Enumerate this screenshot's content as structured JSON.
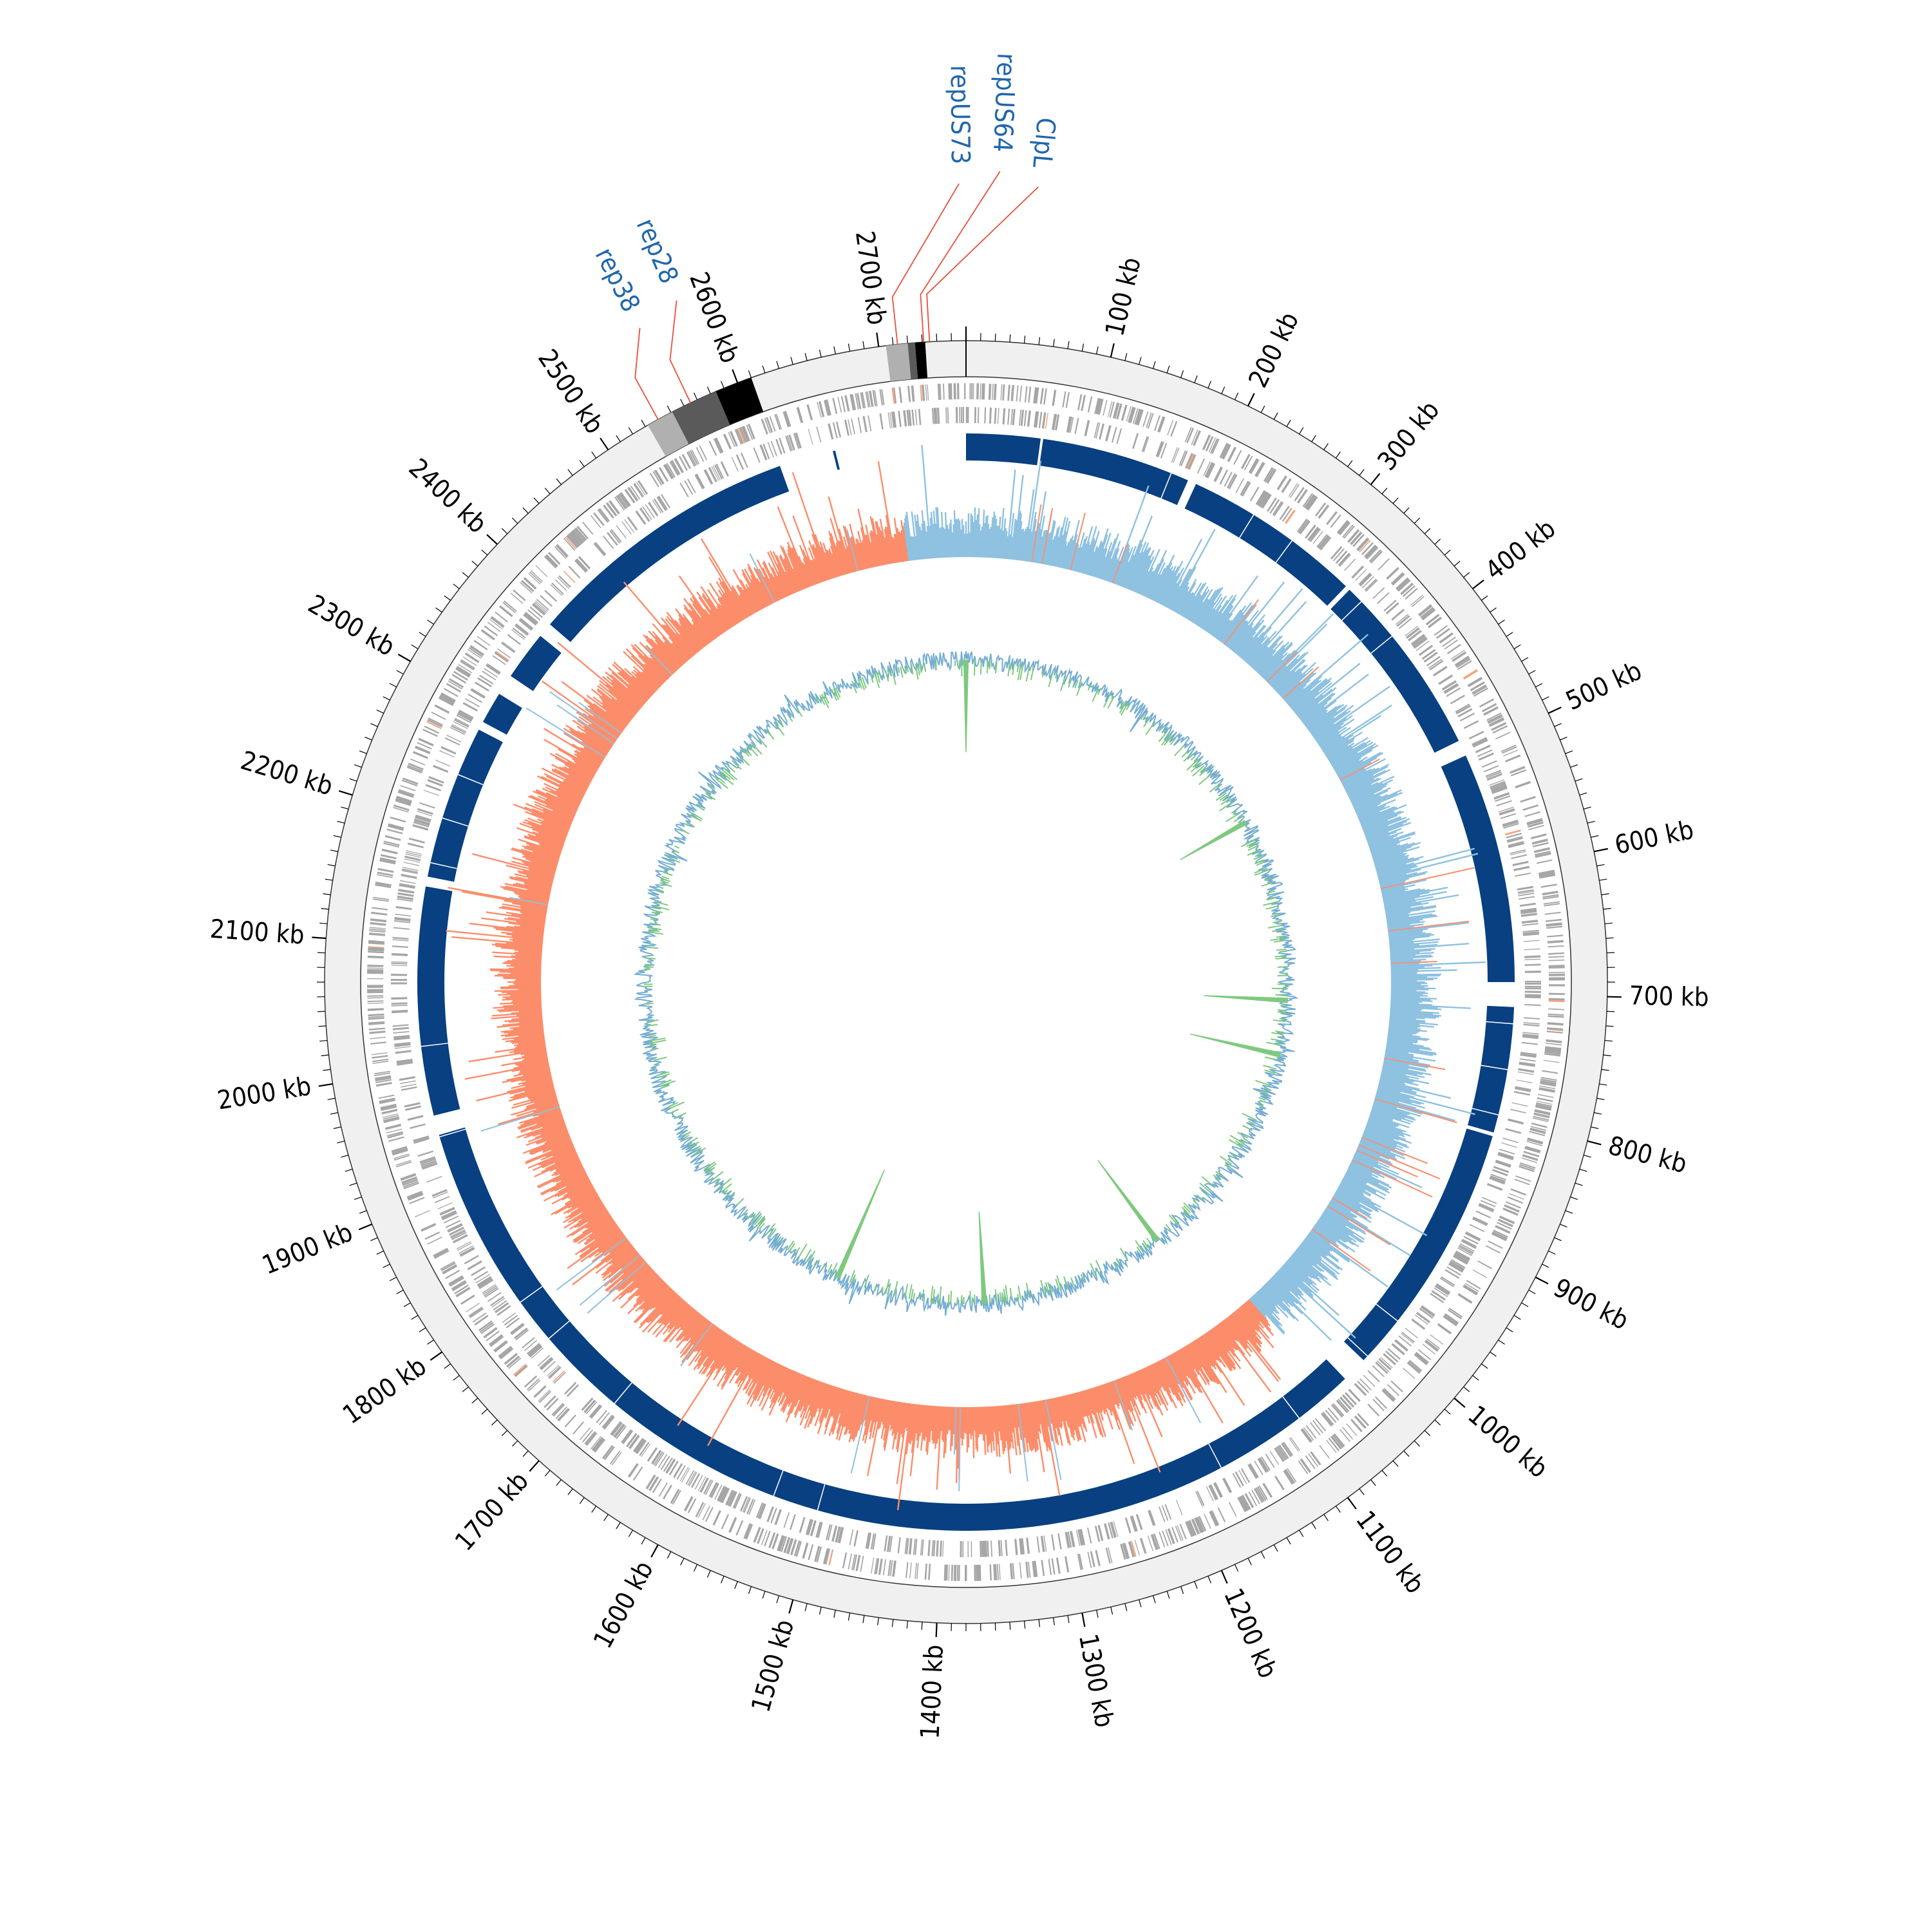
{
  "genome": {
    "length_kb": 2760,
    "ring_colors": {
      "ideogram": "#f0f0f0",
      "cds": "#a6a6a6",
      "cds_highlight": "#f4a582",
      "blocks": "#084081",
      "skew_positive": "#8fc1e0",
      "skew_negative": "#fc8d6b",
      "gc_content": "#74add1",
      "gc_peaks": "#7fc97f",
      "label_leader": "#e8503a",
      "gene_label": "#2166ac"
    }
  },
  "tick_labels": [
    {
      "pos": 100,
      "label": "100 kb"
    },
    {
      "pos": 200,
      "label": "200 kb"
    },
    {
      "pos": 300,
      "label": "300 kb"
    },
    {
      "pos": 400,
      "label": "400 kb"
    },
    {
      "pos": 500,
      "label": "500 kb"
    },
    {
      "pos": 600,
      "label": "600 kb"
    },
    {
      "pos": 700,
      "label": "700 kb"
    },
    {
      "pos": 800,
      "label": "800 kb"
    },
    {
      "pos": 900,
      "label": "900 kb"
    },
    {
      "pos": 1000,
      "label": "1000 kb"
    },
    {
      "pos": 1100,
      "label": "1100 kb"
    },
    {
      "pos": 1200,
      "label": "1200 kb"
    },
    {
      "pos": 1300,
      "label": "1300 kb"
    },
    {
      "pos": 1400,
      "label": "1400 kb"
    },
    {
      "pos": 1500,
      "label": "1500 kb"
    },
    {
      "pos": 1600,
      "label": "1600 kb"
    },
    {
      "pos": 1700,
      "label": "1700 kb"
    },
    {
      "pos": 1800,
      "label": "1800 kb"
    },
    {
      "pos": 1900,
      "label": "1900 kb"
    },
    {
      "pos": 2000,
      "label": "2000 kb"
    },
    {
      "pos": 2100,
      "label": "2100 kb"
    },
    {
      "pos": 2200,
      "label": "2200 kb"
    },
    {
      "pos": 2300,
      "label": "2300 kb"
    },
    {
      "pos": 2400,
      "label": "2400 kb"
    },
    {
      "pos": 2500,
      "label": "2500 kb"
    },
    {
      "pos": 2600,
      "label": "2600 kb"
    },
    {
      "pos": 2700,
      "label": "2700 kb"
    }
  ],
  "gene_labels": [
    {
      "name": "ClpL",
      "pos": 2735
    },
    {
      "name": "repUS64",
      "pos": 2731
    },
    {
      "name": "repUS73",
      "pos": 2713
    },
    {
      "name": "rep28",
      "pos": 2565
    },
    {
      "name": "rep38",
      "pos": 2540
    }
  ],
  "ideogram_regions": [
    {
      "start": 2532,
      "end": 2551,
      "shade": "#b0b0b0"
    },
    {
      "start": 2551,
      "end": 2584,
      "shade": "#5a5a5a"
    },
    {
      "start": 2584,
      "end": 2610,
      "shade": "#000000"
    },
    {
      "start": 2705,
      "end": 2720,
      "shade": "#b0b0b0"
    },
    {
      "start": 2720,
      "end": 2725,
      "shade": "#5a5a5a"
    },
    {
      "start": 2725,
      "end": 2732,
      "shade": "#000000"
    }
  ],
  "block_ring_gaps": [
    {
      "start": 2608,
      "end": 2760
    },
    {
      "start": 60,
      "end": 62
    },
    {
      "start": 183,
      "end": 190
    },
    {
      "start": 336,
      "end": 340
    },
    {
      "start": 490,
      "end": 503
    },
    {
      "start": 690,
      "end": 710
    },
    {
      "start": 812,
      "end": 815
    },
    {
      "start": 1024,
      "end": 1045
    },
    {
      "start": 1946,
      "end": 1962
    },
    {
      "start": 2147,
      "end": 2155
    },
    {
      "start": 2280,
      "end": 2287
    },
    {
      "start": 2313,
      "end": 2330
    },
    {
      "start": 2370,
      "end": 2382
    }
  ],
  "skew_sign_change_kb": [
    0,
    1060,
    2700
  ],
  "gc_spikes": [
    {
      "pos": 0,
      "height": 0.55
    },
    {
      "pos": 462,
      "height": 0.45
    },
    {
      "pos": 715,
      "height": 0.5
    },
    {
      "pos": 790,
      "height": 0.55
    },
    {
      "pos": 1100,
      "height": 0.6
    },
    {
      "pos": 1355,
      "height": 0.55
    },
    {
      "pos": 1560,
      "height": 0.7
    }
  ]
}
